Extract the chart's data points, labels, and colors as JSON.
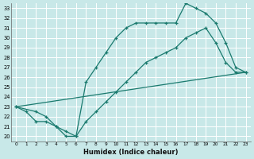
{
  "xlabel": "Humidex (Indice chaleur)",
  "bg_color": "#c8e8e8",
  "grid_color": "#ffffff",
  "line_color": "#1a7a6e",
  "xlim": [
    -0.5,
    23.5
  ],
  "ylim": [
    19.5,
    33.5
  ],
  "xticks": [
    0,
    1,
    2,
    3,
    4,
    5,
    6,
    7,
    8,
    9,
    10,
    11,
    12,
    13,
    14,
    15,
    16,
    17,
    18,
    19,
    20,
    21,
    22,
    23
  ],
  "yticks": [
    20,
    21,
    22,
    23,
    24,
    25,
    26,
    27,
    28,
    29,
    30,
    31,
    32,
    33
  ],
  "line1_x": [
    0,
    1,
    2,
    3,
    4,
    5,
    6,
    7,
    8,
    9,
    10,
    11,
    12,
    13,
    14,
    15,
    16,
    17,
    18,
    19,
    20,
    21,
    22,
    23
  ],
  "line1_y": [
    23,
    22.5,
    21.5,
    21.5,
    21.0,
    20.5,
    20.0,
    21.5,
    22.5,
    23.5,
    24.5,
    25.5,
    26.5,
    27.5,
    28.0,
    28.5,
    29.0,
    30.0,
    30.5,
    31.0,
    29.5,
    27.5,
    26.5,
    26.5
  ],
  "line2_x": [
    0,
    2,
    3,
    4,
    5,
    6,
    7,
    8,
    9,
    10,
    11,
    12,
    13,
    14,
    15,
    16,
    17,
    18,
    19,
    20,
    21,
    22,
    23
  ],
  "line2_y": [
    23,
    22.5,
    22.0,
    21.0,
    20.0,
    20.0,
    25.5,
    27.0,
    28.5,
    30.0,
    31.0,
    31.5,
    31.5,
    31.5,
    31.5,
    31.5,
    33.5,
    33.0,
    32.5,
    31.5,
    29.5,
    27.0,
    26.5
  ],
  "line3_x": [
    0,
    23
  ],
  "line3_y": [
    23,
    26.5
  ]
}
